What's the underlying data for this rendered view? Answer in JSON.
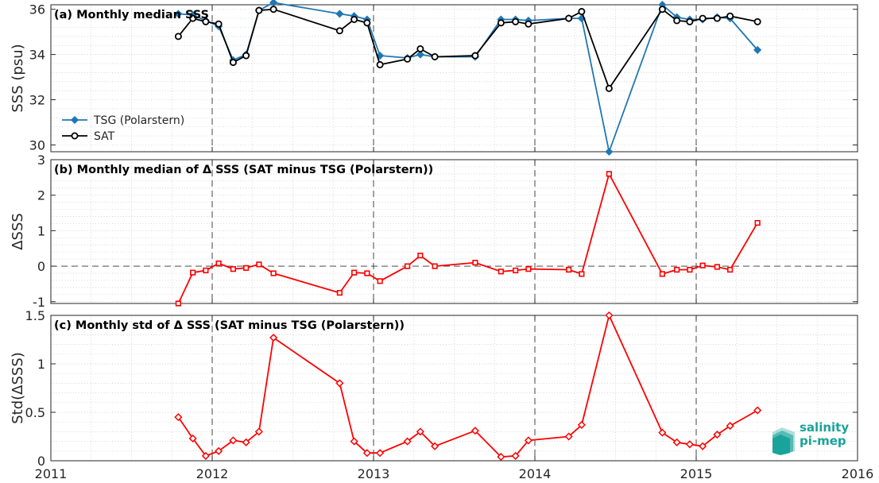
{
  "colors": {
    "tsg": "#1f77b4",
    "sat": "#000000",
    "delta": "#ff0000",
    "grid": "#c8c8c8",
    "logo": "#1aa39a"
  },
  "logo": {
    "line1": "salinity",
    "line2": "pi-mep"
  },
  "chart_data": [
    {
      "type": "line",
      "title": "(a) Monthly median SSS",
      "ylabel": "SSS (psu)",
      "ylim": [
        29.7,
        36.2
      ],
      "yticks": [
        30,
        32,
        34,
        36
      ],
      "ytick_labels": [
        "30",
        "32",
        "34",
        "36"
      ],
      "xlim": [
        2011,
        2016
      ],
      "x_tick_labels": [],
      "legend": "left",
      "series": [
        {
          "name": "TSG (Polarstern)",
          "marker": "diamond",
          "color": "#1f77b4",
          "x": [
            2011.79,
            2011.88,
            2011.96,
            2012.04,
            2012.13,
            2012.21,
            2012.29,
            2012.38,
            2012.79,
            2012.88,
            2012.96,
            2013.04,
            2013.21,
            2013.29,
            2013.38,
            2013.63,
            2013.79,
            2013.88,
            2013.96,
            2014.21,
            2014.29,
            2014.46,
            2014.79,
            2014.88,
            2014.96,
            2015.04,
            2015.13,
            2015.21,
            2015.38
          ],
          "y": [
            35.8,
            35.75,
            35.5,
            35.25,
            33.75,
            34.0,
            35.95,
            36.3,
            35.8,
            35.7,
            35.55,
            33.95,
            33.85,
            34.0,
            33.9,
            33.9,
            35.55,
            35.55,
            35.5,
            35.6,
            35.6,
            29.7,
            36.2,
            35.65,
            35.55,
            35.55,
            35.65,
            35.6,
            34.2
          ]
        },
        {
          "name": "SAT",
          "marker": "circle",
          "color": "#000000",
          "x": [
            2011.79,
            2011.88,
            2011.96,
            2012.04,
            2012.13,
            2012.21,
            2012.29,
            2012.38,
            2012.79,
            2012.88,
            2012.96,
            2013.04,
            2013.21,
            2013.29,
            2013.38,
            2013.63,
            2013.79,
            2013.88,
            2013.96,
            2014.21,
            2014.29,
            2014.46,
            2014.79,
            2014.88,
            2014.96,
            2015.04,
            2015.13,
            2015.21,
            2015.38
          ],
          "y": [
            34.8,
            35.6,
            35.45,
            35.35,
            33.65,
            33.95,
            35.95,
            36.0,
            35.05,
            35.55,
            35.4,
            33.55,
            33.8,
            34.25,
            33.9,
            33.95,
            35.4,
            35.45,
            35.35,
            35.6,
            35.9,
            32.5,
            36.0,
            35.5,
            35.45,
            35.6,
            35.6,
            35.7,
            35.45
          ]
        }
      ]
    },
    {
      "type": "line",
      "title": "(b) Monthly median of Δ SSS (SAT minus TSG (Polarstern))",
      "ylabel": "ΔSSS",
      "ylim": [
        -1.05,
        3
      ],
      "yticks": [
        -1,
        0,
        1,
        2,
        3
      ],
      "ytick_labels": [
        "-1",
        "0",
        "1",
        "2",
        "3"
      ],
      "xlim": [
        2011,
        2016
      ],
      "x_tick_labels": [],
      "zero_line": true,
      "series": [
        {
          "name": "",
          "marker": "square",
          "color": "#ff0000",
          "x": [
            2011.79,
            2011.88,
            2011.96,
            2012.04,
            2012.13,
            2012.21,
            2012.29,
            2012.38,
            2012.79,
            2012.88,
            2012.96,
            2013.04,
            2013.21,
            2013.29,
            2013.38,
            2013.63,
            2013.79,
            2013.88,
            2013.96,
            2014.21,
            2014.29,
            2014.46,
            2014.79,
            2014.88,
            2014.96,
            2015.04,
            2015.13,
            2015.21,
            2015.38
          ],
          "y": [
            -1.05,
            -0.18,
            -0.12,
            0.08,
            -0.08,
            -0.05,
            0.05,
            -0.2,
            -0.75,
            -0.18,
            -0.2,
            -0.42,
            0.0,
            0.3,
            0.0,
            0.1,
            -0.15,
            -0.12,
            -0.08,
            -0.1,
            -0.22,
            2.6,
            -0.22,
            -0.1,
            -0.1,
            0.02,
            -0.02,
            -0.1,
            1.22
          ]
        }
      ]
    },
    {
      "type": "line",
      "title": "(c) Monthly std of Δ SSS (SAT minus TSG (Polarstern))",
      "ylabel": "Std(ΔSSS)",
      "ylim": [
        0,
        1.5
      ],
      "yticks": [
        0,
        0.5,
        1,
        1.5
      ],
      "ytick_labels": [
        "0",
        "0.5",
        "1",
        "1.5"
      ],
      "xlim": [
        2011,
        2016
      ],
      "xticks": [
        2011,
        2012,
        2013,
        2014,
        2015,
        2016
      ],
      "x_tick_labels": [
        "2011",
        "2012",
        "2013",
        "2014",
        "2015",
        "2016"
      ],
      "series": [
        {
          "name": "",
          "marker": "diamond",
          "color": "#ff0000",
          "x": [
            2011.79,
            2011.88,
            2011.96,
            2012.04,
            2012.13,
            2012.21,
            2012.29,
            2012.38,
            2012.79,
            2012.88,
            2012.96,
            2013.04,
            2013.21,
            2013.29,
            2013.38,
            2013.63,
            2013.79,
            2013.88,
            2013.96,
            2014.21,
            2014.29,
            2014.46,
            2014.79,
            2014.88,
            2014.96,
            2015.04,
            2015.13,
            2015.21,
            2015.38
          ],
          "y": [
            0.45,
            0.23,
            0.05,
            0.1,
            0.21,
            0.19,
            0.3,
            1.27,
            0.8,
            0.2,
            0.08,
            0.08,
            0.2,
            0.3,
            0.15,
            0.31,
            0.04,
            0.05,
            0.21,
            0.25,
            0.37,
            1.5,
            0.29,
            0.19,
            0.17,
            0.15,
            0.27,
            0.36,
            0.52
          ]
        }
      ]
    }
  ]
}
